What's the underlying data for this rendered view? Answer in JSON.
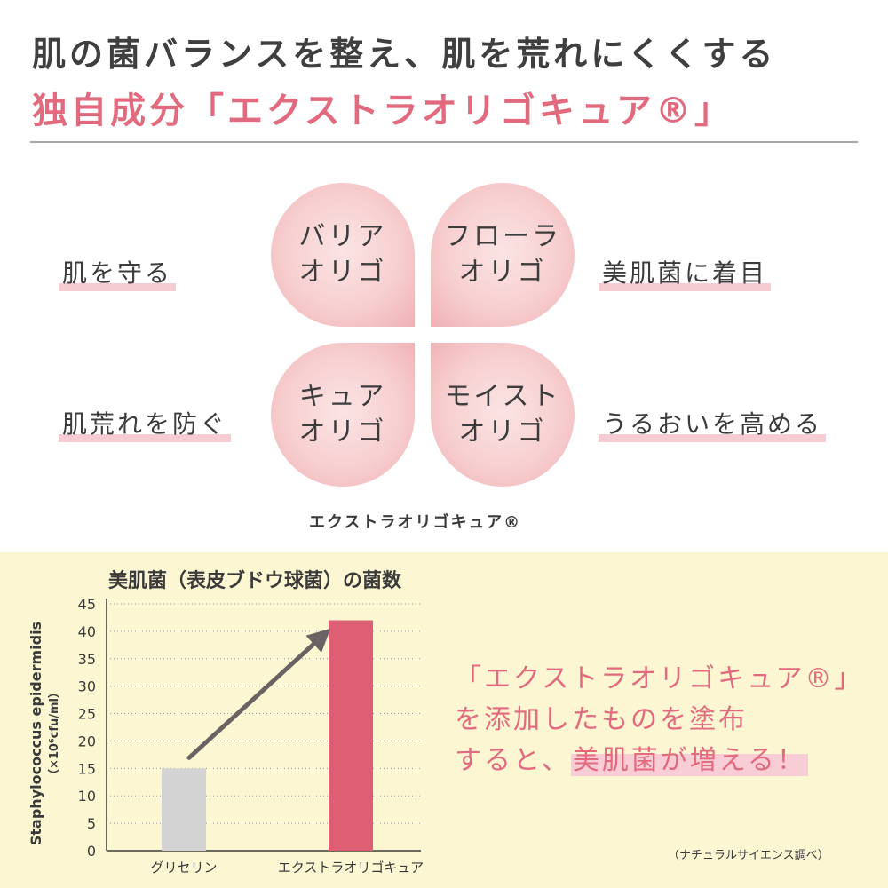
{
  "header": {
    "line1": "肌の菌バランスを整え、肌を荒れにくくする",
    "line2": "独自成分「エクストラオリゴキュア®」"
  },
  "clover": {
    "petals": [
      {
        "line1": "バリア",
        "line2": "オリゴ"
      },
      {
        "line1": "フローラ",
        "line2": "オリゴ"
      },
      {
        "line1": "キュア",
        "line2": "オリゴ"
      },
      {
        "line1": "モイスト",
        "line2": "オリゴ"
      }
    ],
    "left_labels": [
      "肌を守る",
      "肌荒れを防ぐ"
    ],
    "right_labels": [
      "美肌菌に着目",
      "うるおいを高める"
    ],
    "caption": "エクストラオリゴキュア®"
  },
  "callout": {
    "line1": "「エクストラオリゴキュア®」",
    "line2": "を添加したものを塗布",
    "line3_pre": "すると、",
    "line3_highlight": "美肌菌が増える！"
  },
  "source": "（ナチュラルサイエンス調べ）",
  "colors": {
    "accent_pink": "#e26a7e",
    "bar_gray": "#d3d3d3",
    "bar_pink": "#de5f74",
    "arrow": "#6b6363",
    "panel_yellow": "#fcf6d2"
  },
  "chart_data": {
    "type": "bar",
    "title": "美肌菌（表皮ブドウ球菌）の菌数",
    "ylabel": "Staphylococcus epidermidis",
    "yunit": "（×10⁶cfu/ml）",
    "categories": [
      "グリセリン",
      "エクストラオリゴキュア"
    ],
    "values": [
      15,
      42
    ],
    "ylim": [
      0,
      45
    ],
    "yticks": [
      0,
      5,
      10,
      15,
      20,
      25,
      30,
      35,
      40,
      45
    ],
    "grid": true,
    "annotation": "arrow from first bar to second bar"
  }
}
